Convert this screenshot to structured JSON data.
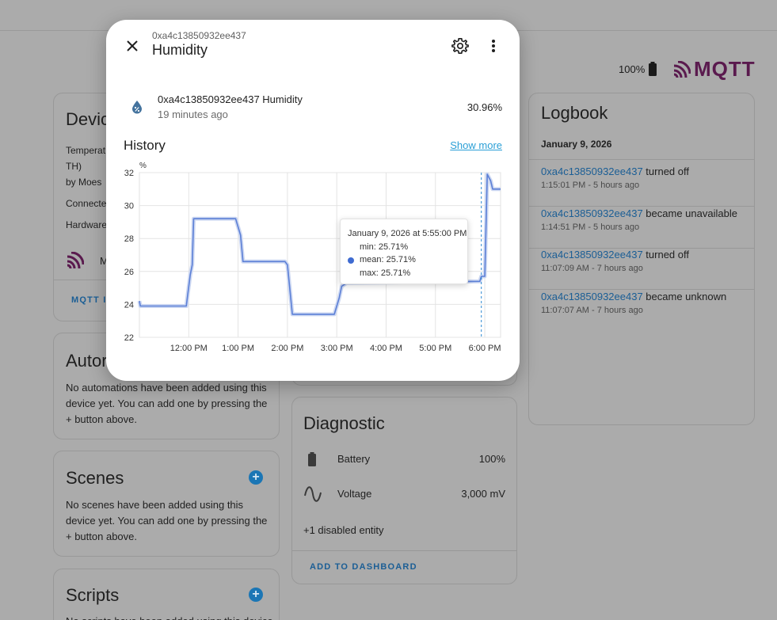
{
  "header": {
    "battery_text": "100%"
  },
  "brand": {
    "logo_text": "MQTT"
  },
  "device_card": {
    "title": "Devic",
    "line1": "Temperat",
    "line2": "TH)",
    "line3": "by Moes",
    "connected": "Connecte",
    "hardware": "Hardware",
    "mqtt_label": "M",
    "action": "MQTT I"
  },
  "automations_card": {
    "title": "Autor",
    "text": "No automations have been added using this device yet. You can add one by pressing the + button above."
  },
  "scenes_card": {
    "title": "Scenes",
    "text": "No scenes have been added using this device yet. You can add one by pressing the + button above."
  },
  "scripts_card": {
    "title": "Scripts",
    "text": "No scripts have been added using this device"
  },
  "diagnostic_card": {
    "title": "Diagnostic",
    "rows": [
      {
        "icon": "battery-icon",
        "label": "Battery",
        "value": "100%"
      },
      {
        "icon": "voltage-sine-icon",
        "label": "Voltage",
        "value": "3,000 mV"
      }
    ],
    "disabled_entities": "+1 disabled entity",
    "action": "Add to dashboard"
  },
  "logbook": {
    "title": "Logbook",
    "date": "January 9, 2026",
    "entries": [
      {
        "entity": "0xa4c13850932ee437",
        "event": " turned off",
        "time": "1:15:01 PM - 5 hours ago"
      },
      {
        "entity": "0xa4c13850932ee437",
        "event": " became unavailable",
        "time": "1:14:51 PM - 5 hours ago"
      },
      {
        "entity": "0xa4c13850932ee437",
        "event": " turned off",
        "time": "11:07:09 AM - 7 hours ago"
      },
      {
        "entity": "0xa4c13850932ee437",
        "event": " became unknown",
        "time": "11:07:07 AM - 7 hours ago"
      }
    ]
  },
  "dialog": {
    "subtitle": "0xa4c13850932ee437",
    "title": "Humidity",
    "entity_name": "0xa4c13850932ee437 Humidity",
    "last_changed": "19 minutes ago",
    "state": "30.96%",
    "history_title": "History",
    "show_more": "Show more",
    "tooltip": {
      "header": "January 9, 2026 at 5:55:00 PM",
      "min": "min: 25.71%",
      "mean": "mean: 25.71%",
      "max": "max: 25.71%"
    }
  },
  "chart_data": {
    "type": "line",
    "ylabel": "%",
    "ylim": [
      22,
      32
    ],
    "yticks": [
      22,
      24,
      26,
      28,
      30,
      32
    ],
    "xlim": [
      11.0,
      18.32
    ],
    "xticks": [
      {
        "label": "12:00 PM",
        "value": 12
      },
      {
        "label": "1:00 PM",
        "value": 13
      },
      {
        "label": "2:00 PM",
        "value": 14
      },
      {
        "label": "3:00 PM",
        "value": 15
      },
      {
        "label": "4:00 PM",
        "value": 16
      },
      {
        "label": "5:00 PM",
        "value": 17
      },
      {
        "label": "6:00 PM",
        "value": 18
      }
    ],
    "grid": true,
    "series": [
      {
        "color": "#5b7fd6",
        "points": [
          [
            11.0,
            24.2
          ],
          [
            11.02,
            23.9
          ],
          [
            11.9,
            23.9
          ],
          [
            11.95,
            23.9
          ],
          [
            12.03,
            25.8
          ],
          [
            12.07,
            26.4
          ],
          [
            12.1,
            29.2
          ],
          [
            12.95,
            29.2
          ],
          [
            13.05,
            28.2
          ],
          [
            13.1,
            26.6
          ],
          [
            13.95,
            26.6
          ],
          [
            14.0,
            26.4
          ],
          [
            14.1,
            23.4
          ],
          [
            14.95,
            23.4
          ],
          [
            15.05,
            24.4
          ],
          [
            15.1,
            25.1
          ],
          [
            15.2,
            25.3
          ],
          [
            17.9,
            25.4
          ],
          [
            17.93,
            25.7
          ],
          [
            18.0,
            25.7
          ],
          [
            18.05,
            31.9
          ],
          [
            18.12,
            31.5
          ],
          [
            18.16,
            31.0
          ],
          [
            18.32,
            31.0
          ]
        ]
      }
    ],
    "cursor_x": 17.93
  }
}
